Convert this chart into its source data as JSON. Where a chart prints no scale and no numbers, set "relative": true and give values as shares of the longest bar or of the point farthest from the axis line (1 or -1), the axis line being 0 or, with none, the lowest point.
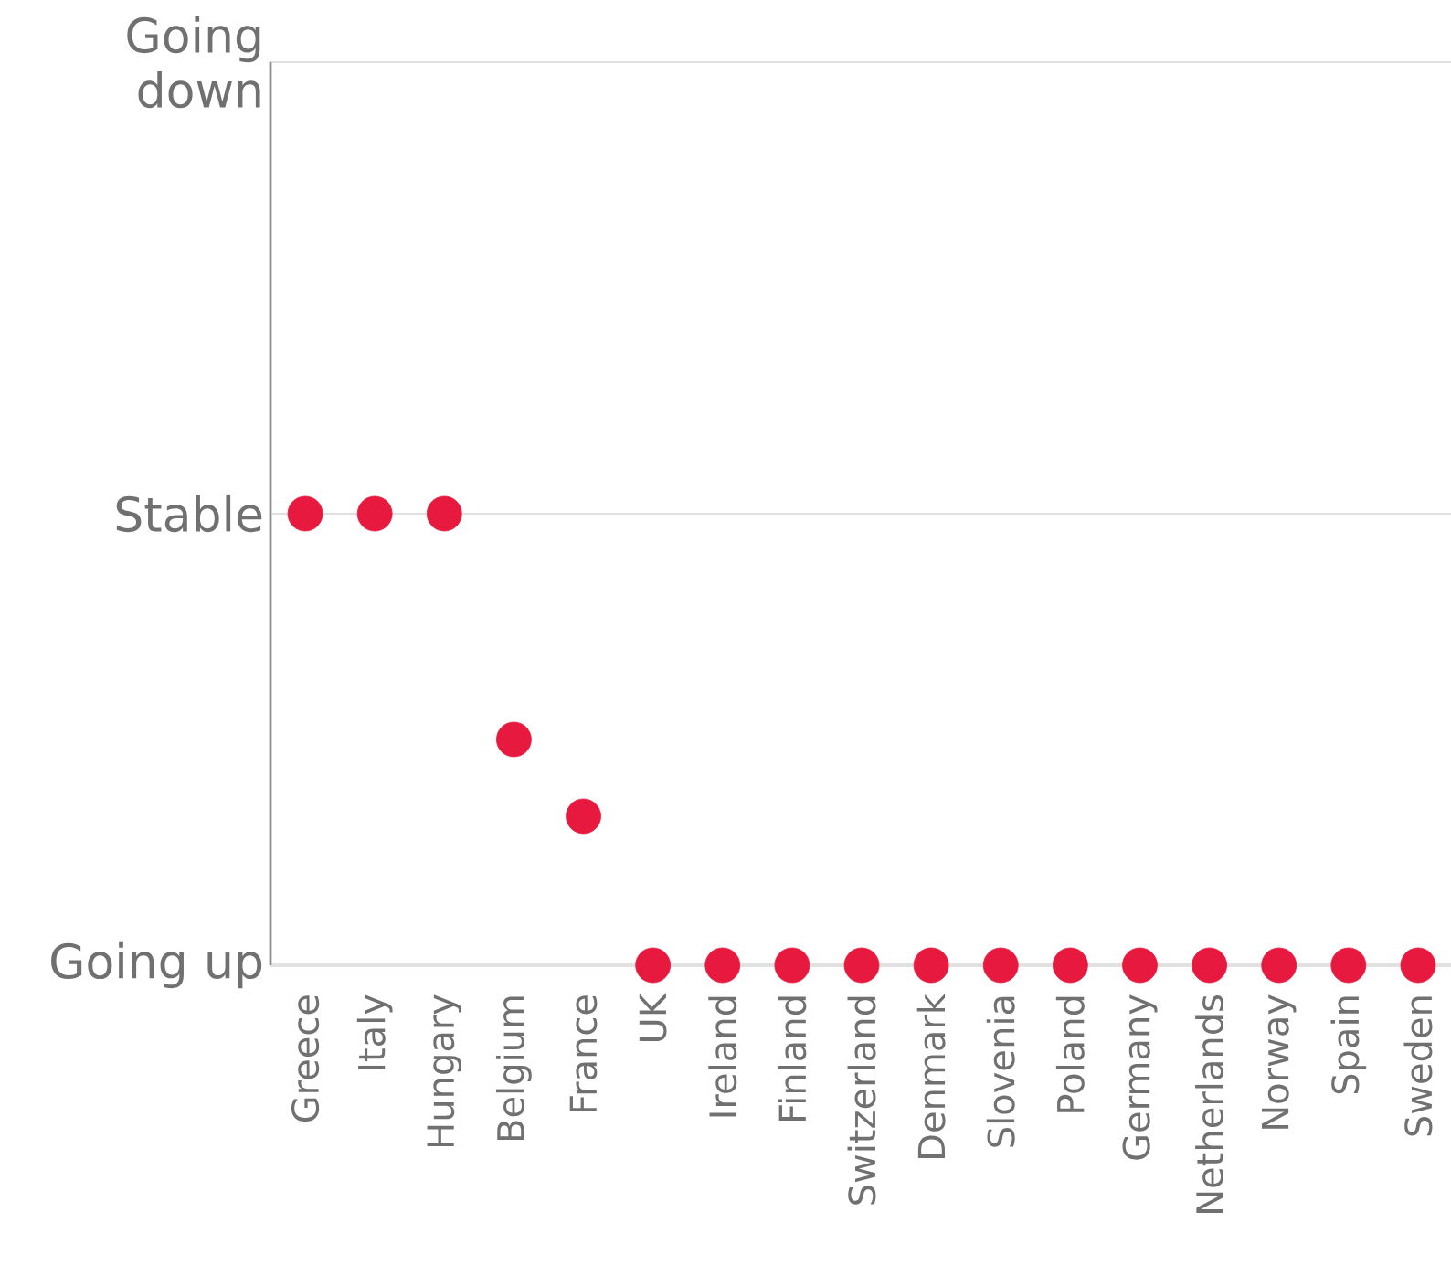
{
  "chart_data": {
    "type": "scatter",
    "categories": [
      "Greece",
      "Italy",
      "Hungary",
      "Belgium",
      "France",
      "UK",
      "Ireland",
      "Finland",
      "Switzerland",
      "Denmark",
      "Slovenia",
      "Poland",
      "Germany",
      "Netherlands",
      "Norway",
      "Spain",
      "Sweden"
    ],
    "values": [
      1,
      1,
      1,
      0.5,
      0.33,
      0,
      0,
      0,
      0,
      0,
      0,
      0,
      0,
      0,
      0,
      0,
      0
    ],
    "color": "#e8193e",
    "relative": true,
    "ref_lines": [
      {
        "axis": "y",
        "value": 0,
        "label": "Going up"
      },
      {
        "axis": "y",
        "value": 1,
        "label": "Stable"
      },
      {
        "axis": "y",
        "value": 2,
        "label": "Going down"
      }
    ]
  }
}
